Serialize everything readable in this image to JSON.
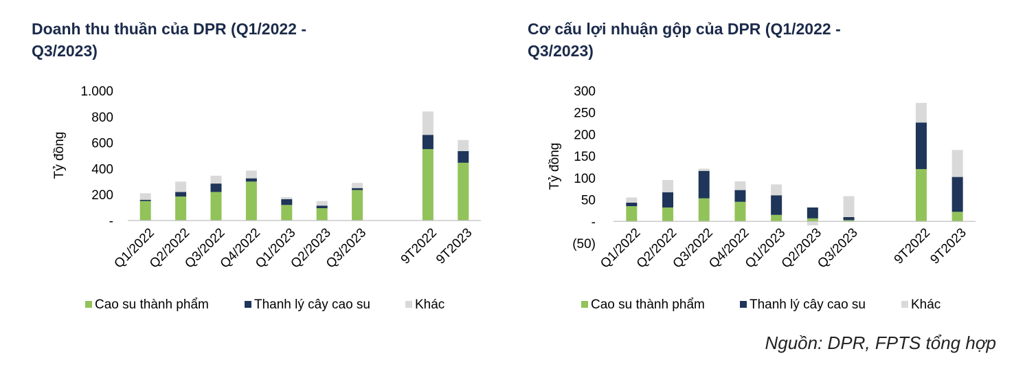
{
  "colors": {
    "title": "#1b2a4a",
    "cao_su": "#92c35a",
    "thanh_ly": "#1f3559",
    "khac": "#d9d9d9",
    "axis": "#bfbfbf",
    "text": "#000000"
  },
  "source_note": "Nguồn: DPR, FPTS tổng hợp",
  "chart_data": [
    {
      "type": "bar",
      "stacked": true,
      "title": "Doanh thu thuần của DPR (Q1/2022 - Q3/2023)",
      "title_lines": [
        "Doanh thu thuần của DPR (Q1/2022 -",
        "Q3/2023)"
      ],
      "ylabel": "Tỷ đồng",
      "ylim": [
        0,
        1000
      ],
      "yticks": [
        0,
        200,
        400,
        600,
        800,
        1000
      ],
      "ytick_labels": [
        "-",
        "200",
        "400",
        "600",
        "800",
        "1.000"
      ],
      "categories": [
        "Q1/2022",
        "Q2/2022",
        "Q3/2022",
        "Q4/2022",
        "Q1/2023",
        "Q2/2023",
        "Q3/2023",
        "",
        "9T2022",
        "9T2023"
      ],
      "series": [
        {
          "name": "Cao su thành phẩm",
          "color_key": "cao_su",
          "values": [
            150,
            185,
            220,
            300,
            120,
            95,
            235,
            null,
            550,
            445
          ]
        },
        {
          "name": "Thanh lý cây cao su",
          "color_key": "thanh_ly",
          "values": [
            10,
            35,
            65,
            25,
            45,
            20,
            15,
            null,
            110,
            90
          ]
        },
        {
          "name": "Khác",
          "color_key": "khac",
          "values": [
            50,
            80,
            60,
            60,
            15,
            35,
            40,
            null,
            180,
            85
          ]
        }
      ],
      "legend_position": "bottom"
    },
    {
      "type": "bar",
      "stacked": true,
      "title": "Cơ cấu lợi nhuận gộp của DPR (Q1/2022 - Q3/2023)",
      "title_lines": [
        "Cơ cấu lợi nhuận gộp của DPR (Q1/2022 -",
        "Q3/2023)"
      ],
      "ylabel": "Tỷ đồng",
      "ylim": [
        -50,
        300
      ],
      "yticks": [
        -50,
        0,
        50,
        100,
        150,
        200,
        250,
        300
      ],
      "ytick_labels": [
        "(50)",
        "-",
        "50",
        "100",
        "150",
        "200",
        "250",
        "300"
      ],
      "categories": [
        "Q1/2022",
        "Q2/2022",
        "Q3/2022",
        "Q4/2022",
        "Q1/2023",
        "Q2/2023",
        "Q3/2023",
        "",
        "9T2022",
        "9T2023"
      ],
      "series": [
        {
          "name": "Cao su thành phẩm",
          "color_key": "cao_su",
          "values": [
            35,
            32,
            53,
            45,
            15,
            7,
            3,
            null,
            120,
            22
          ]
        },
        {
          "name": "Thanh lý cây cao su",
          "color_key": "thanh_ly",
          "values": [
            8,
            35,
            63,
            27,
            45,
            25,
            7,
            null,
            107,
            80
          ]
        },
        {
          "name": "Khác",
          "color_key": "khac",
          "values": [
            12,
            28,
            5,
            20,
            25,
            -9,
            48,
            null,
            45,
            62
          ]
        }
      ],
      "legend_position": "bottom"
    }
  ]
}
